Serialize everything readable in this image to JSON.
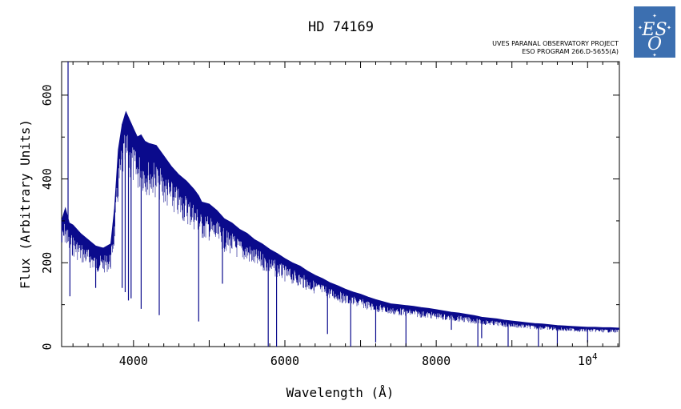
{
  "chart_data": {
    "type": "line",
    "title": "HD 74169",
    "project_line1": "UVES PARANAL OBSERVATORY PROJECT",
    "project_line2": "ESO PROGRAM 266.D-5655(A)",
    "xlabel": "Wavelength (Å)",
    "ylabel": "Flux (Arbitrary Units)",
    "xlim": [
      3050,
      10420
    ],
    "ylim": [
      0,
      680
    ],
    "xticks": [
      {
        "value": 4000,
        "label": "4000"
      },
      {
        "value": 6000,
        "label": "6000"
      },
      {
        "value": 8000,
        "label": "8000"
      },
      {
        "value": 10000,
        "label": "10",
        "sup": "4"
      }
    ],
    "yticks": [
      {
        "value": 0,
        "label": "0"
      },
      {
        "value": 200,
        "label": "200"
      },
      {
        "value": 400,
        "label": "400"
      },
      {
        "value": 600,
        "label": "600"
      }
    ],
    "grid": false,
    "line_color": "#0a0a8c",
    "series": [
      {
        "x": [
          3050,
          3100,
          3150,
          3200,
          3300,
          3400,
          3500,
          3600,
          3700,
          3750,
          3800,
          3850,
          3900,
          3950,
          4000,
          4050,
          4100,
          4150,
          4200,
          4300,
          4400,
          4500,
          4600,
          4700,
          4800,
          4860,
          4900,
          5000,
          5100,
          5200,
          5300,
          5400,
          5500,
          5600,
          5700,
          5800,
          5900,
          6000,
          6100,
          6200,
          6300,
          6400,
          6500,
          6600,
          6700,
          6800,
          6900,
          7000,
          7100,
          7200,
          7300,
          7400,
          7500,
          7600,
          7700,
          7800,
          7900,
          8000,
          8100,
          8200,
          8300,
          8400,
          8500,
          8550,
          8600,
          8700,
          8800,
          8900,
          9000,
          9100,
          9200,
          9300,
          9400,
          9500,
          9600,
          9700,
          9800,
          9900,
          10000,
          10100,
          10200,
          10300,
          10420
        ],
        "y": [
          300,
          330,
          295,
          290,
          270,
          255,
          240,
          235,
          245,
          330,
          470,
          530,
          560,
          540,
          520,
          500,
          505,
          490,
          485,
          480,
          455,
          430,
          410,
          395,
          375,
          360,
          345,
          340,
          325,
          305,
          295,
          280,
          270,
          255,
          245,
          232,
          222,
          210,
          200,
          192,
          180,
          170,
          162,
          152,
          145,
          137,
          130,
          125,
          118,
          112,
          107,
          102,
          100,
          98,
          96,
          93,
          91,
          88,
          85,
          82,
          80,
          77,
          74,
          72,
          70,
          68,
          66,
          63,
          61,
          59,
          57,
          55,
          54,
          52,
          50,
          49,
          48,
          47,
          46,
          46,
          45,
          45,
          44
        ],
        "absorption": [
          {
            "x": 3135,
            "y": 680
          },
          {
            "x": 3160,
            "y": 120
          },
          {
            "x": 3500,
            "y": 140
          },
          {
            "x": 3850,
            "y": 140
          },
          {
            "x": 3890,
            "y": 130
          },
          {
            "x": 3933,
            "y": 110
          },
          {
            "x": 3968,
            "y": 115
          },
          {
            "x": 4101,
            "y": 90
          },
          {
            "x": 4340,
            "y": 75
          },
          {
            "x": 4861,
            "y": 60
          },
          {
            "x": 5175,
            "y": 150
          },
          {
            "x": 5780,
            "y": 0
          },
          {
            "x": 5890,
            "y": 0
          },
          {
            "x": 6563,
            "y": 30
          },
          {
            "x": 6870,
            "y": 0
          },
          {
            "x": 7200,
            "y": 10
          },
          {
            "x": 7600,
            "y": 0
          },
          {
            "x": 8200,
            "y": 40
          },
          {
            "x": 8550,
            "y": 0
          },
          {
            "x": 8600,
            "y": 20
          },
          {
            "x": 8950,
            "y": 0
          },
          {
            "x": 9350,
            "y": 0
          },
          {
            "x": 9600,
            "y": 0
          },
          {
            "x": 10000,
            "y": 10
          }
        ]
      }
    ]
  },
  "logo": {
    "text": "ESO",
    "background": "#3c6fb0"
  }
}
